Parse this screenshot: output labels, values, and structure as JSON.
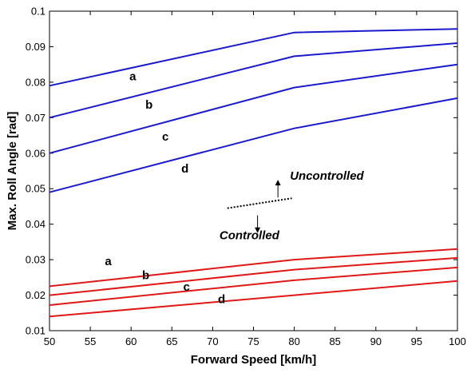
{
  "chart_data": {
    "type": "line",
    "xlabel": "Forward Speed [km/h]",
    "ylabel": "Max. Roll Angle [rad]",
    "xlim": [
      50,
      100
    ],
    "ylim": [
      0.01,
      0.1
    ],
    "xticks": [
      50,
      55,
      60,
      65,
      70,
      75,
      80,
      85,
      90,
      95,
      100
    ],
    "yticks": [
      0.01,
      0.02,
      0.03,
      0.04,
      0.05,
      0.06,
      0.07,
      0.08,
      0.09,
      0.1
    ],
    "grid": false,
    "series": [
      {
        "group": "uncontrolled",
        "label": "a",
        "color": "#1a1acc",
        "x": [
          50,
          80,
          100
        ],
        "y": [
          0.079,
          0.094,
          0.095
        ]
      },
      {
        "group": "uncontrolled",
        "label": "b",
        "color": "#1a1acc",
        "x": [
          50,
          80,
          100
        ],
        "y": [
          0.07,
          0.0873,
          0.091
        ]
      },
      {
        "group": "uncontrolled",
        "label": "c",
        "color": "#1a1acc",
        "x": [
          50,
          80,
          100
        ],
        "y": [
          0.06,
          0.0785,
          0.085
        ]
      },
      {
        "group": "uncontrolled",
        "label": "d",
        "color": "#1a1acc",
        "x": [
          50,
          80,
          100
        ],
        "y": [
          0.049,
          0.067,
          0.0755
        ]
      },
      {
        "group": "controlled",
        "label": "a",
        "color": "#e01818",
        "x": [
          50,
          80,
          100
        ],
        "y": [
          0.0225,
          0.03,
          0.033
        ]
      },
      {
        "group": "controlled",
        "label": "b",
        "color": "#e01818",
        "x": [
          50,
          80,
          100
        ],
        "y": [
          0.02,
          0.0272,
          0.0305
        ]
      },
      {
        "group": "controlled",
        "label": "c",
        "color": "#e01818",
        "x": [
          50,
          80,
          100
        ],
        "y": [
          0.0172,
          0.0242,
          0.0278
        ]
      },
      {
        "group": "controlled",
        "label": "d",
        "color": "#e01818",
        "x": [
          50,
          80,
          100
        ],
        "y": [
          0.014,
          0.02,
          0.024
        ]
      }
    ],
    "curve_labels": [
      {
        "text": "a",
        "x": 60.2,
        "y": 0.0805
      },
      {
        "text": "b",
        "x": 62.2,
        "y": 0.0725
      },
      {
        "text": "c",
        "x": 64.2,
        "y": 0.0635
      },
      {
        "text": "d",
        "x": 66.6,
        "y": 0.0545
      },
      {
        "text": "a",
        "x": 57.2,
        "y": 0.0285
      },
      {
        "text": "b",
        "x": 61.8,
        "y": 0.0245
      },
      {
        "text": "c",
        "x": 66.8,
        "y": 0.0212
      },
      {
        "text": "d",
        "x": 71.1,
        "y": 0.0178
      }
    ],
    "annotations": {
      "uncontrolled": {
        "text": "Uncontrolled",
        "x": 84,
        "y": 0.0525
      },
      "controlled": {
        "text": "Controlled",
        "x": 74.5,
        "y": 0.0358
      },
      "divider": {
        "x": [
          71.8,
          79.7
        ],
        "y": [
          0.0445,
          0.0473
        ]
      },
      "arrow_up": {
        "x": 78,
        "y_from": 0.0475,
        "y_to": 0.0525
      },
      "arrow_down": {
        "x": 75.5,
        "y_from": 0.0425,
        "y_to": 0.0375
      }
    }
  }
}
